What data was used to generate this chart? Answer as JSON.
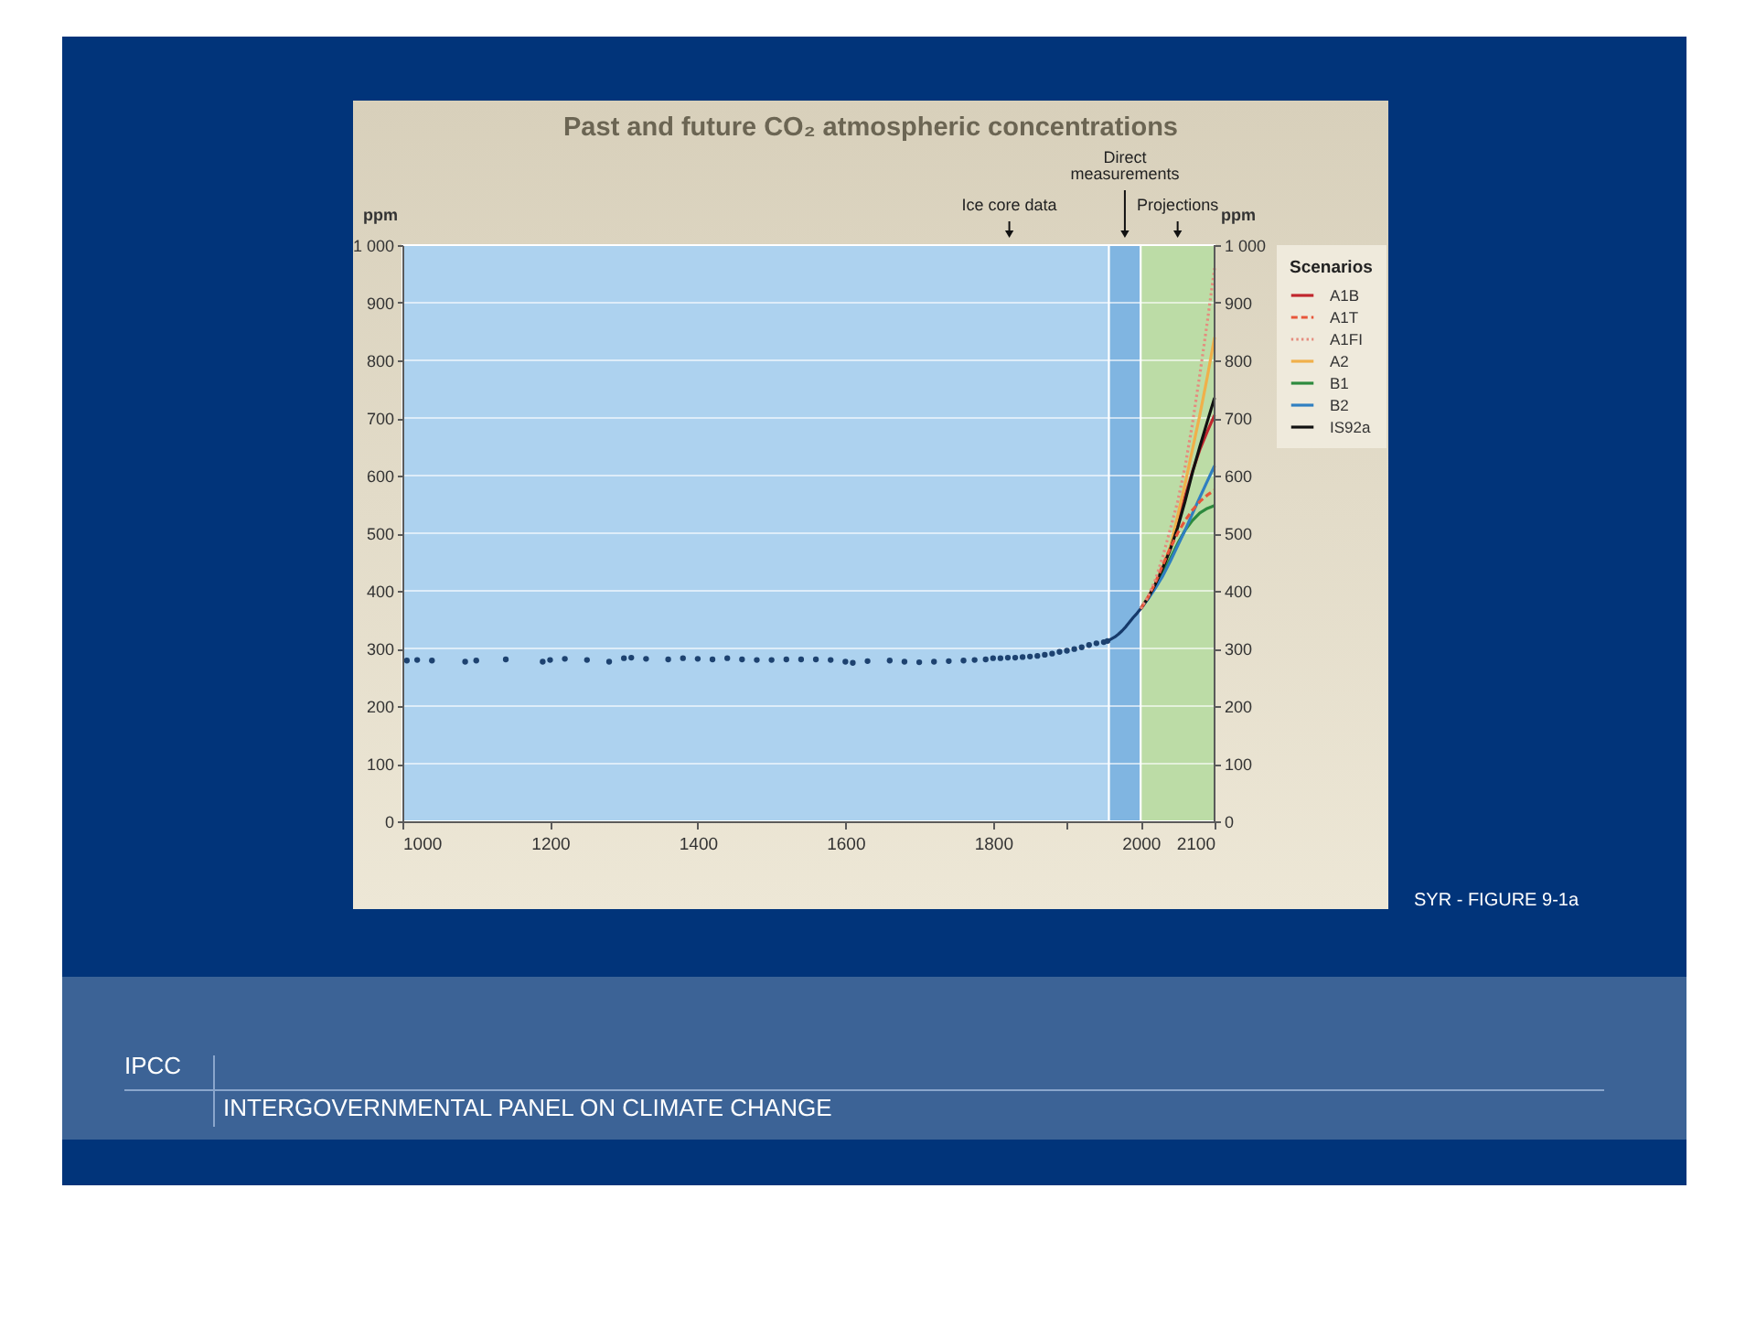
{
  "chart_data": {
    "type": "line",
    "title": "Past and future CO₂ atmospheric concentrations",
    "ylabel": "ppm",
    "y2label": "ppm",
    "legend_title": "Scenarios",
    "legend": "right",
    "grid": "y",
    "xlim": [
      1000,
      2100
    ],
    "xticks": [
      1000,
      1200,
      1400,
      1600,
      1800,
      {
        "value": 1900,
        "label": null
      },
      2000,
      2100
    ],
    "ylim": [
      0,
      1000
    ],
    "yticks": [
      0,
      100,
      200,
      300,
      400,
      500,
      600,
      700,
      800,
      900,
      {
        "value": 1000,
        "label": "1 000"
      }
    ],
    "y2lim": [
      0,
      1000
    ],
    "y2ticks": [
      0,
      100,
      200,
      300,
      400,
      500,
      600,
      700,
      800,
      900,
      {
        "value": 1000,
        "label": "1 000"
      }
    ],
    "bands": [
      {
        "axis": "x",
        "from": 1000,
        "to": 1957,
        "label": "Ice core data",
        "color": "#add2ef"
      },
      {
        "axis": "x",
        "from": 1957,
        "to": 2000,
        "label": "Direct measurements",
        "color": "#80b5e1"
      },
      {
        "axis": "x",
        "from": 2000,
        "to": 2100,
        "label": "Projections",
        "color": "#bcdca6"
      }
    ],
    "annotations": [
      "SYR - FIGURE 9-1a",
      "IPCC",
      "INTERGOVERNMENTAL PANEL ON CLIMATE CHANGE"
    ],
    "series": [
      {
        "type": "scatter",
        "marker": "circle",
        "color": "#1d4270",
        "x": [
          1006,
          1020,
          1040,
          1085,
          1100,
          1140,
          1190,
          1200,
          1220,
          1250,
          1280,
          1300,
          1310,
          1330,
          1360,
          1380,
          1400,
          1420,
          1440,
          1460,
          1480,
          1500,
          1520,
          1540,
          1560,
          1580,
          1600,
          1610,
          1630,
          1660,
          1680,
          1700,
          1720,
          1740,
          1760,
          1775,
          1790,
          1800,
          1810,
          1820,
          1830,
          1840,
          1850,
          1860,
          1870,
          1880,
          1890,
          1900,
          1910,
          1920,
          1930,
          1940,
          1950,
          1955
        ],
        "values": [
          279,
          280,
          279,
          277,
          279,
          281,
          277,
          280,
          282,
          280,
          277,
          283,
          284,
          282,
          281,
          283,
          282,
          281,
          283,
          281,
          280,
          280,
          281,
          281,
          281,
          280,
          277,
          275,
          278,
          279,
          277,
          276,
          277,
          278,
          279,
          280,
          281,
          283,
          283,
          284,
          284,
          285,
          286,
          287,
          289,
          291,
          294,
          296,
          299,
          302,
          306,
          309,
          311,
          313
        ]
      },
      {
        "type": "line",
        "color": "#163a6b",
        "x": [
          1958,
          1965,
          1970,
          1975,
          1980,
          1985,
          1990,
          1995,
          2000
        ],
        "values": [
          315,
          320,
          325,
          331,
          338,
          346,
          354,
          361,
          369
        ]
      },
      {
        "name": "A1B",
        "color": "#c0262d",
        "line_style": "solid",
        "x": [
          2000,
          2010,
          2020,
          2030,
          2040,
          2050,
          2060,
          2070,
          2080,
          2090,
          2100
        ],
        "values": [
          369,
          389,
          412,
          440,
          474,
          518,
          563,
          607,
          645,
          676,
          705
        ]
      },
      {
        "name": "A1T",
        "color": "#e8563a",
        "line_style": "dashed",
        "x": [
          2000,
          2010,
          2020,
          2030,
          2040,
          2050,
          2060,
          2070,
          2080,
          2090,
          2100
        ],
        "values": [
          369,
          389,
          415,
          445,
          474,
          500,
          522,
          540,
          555,
          566,
          575
        ]
      },
      {
        "name": "A1FI",
        "color": "#e58c7e",
        "line_style": "dotted",
        "x": [
          2000,
          2010,
          2020,
          2030,
          2040,
          2050,
          2060,
          2070,
          2080,
          2090,
          2100
        ],
        "values": [
          369,
          390,
          420,
          460,
          507,
          555,
          615,
          690,
          775,
          865,
          960
        ]
      },
      {
        "name": "A2",
        "color": "#f0b04a",
        "line_style": "solid",
        "x": [
          2000,
          2010,
          2020,
          2030,
          2040,
          2050,
          2060,
          2070,
          2080,
          2090,
          2100
        ],
        "values": [
          369,
          388,
          412,
          442,
          476,
          530,
          585,
          645,
          705,
          770,
          840
        ]
      },
      {
        "name": "B1",
        "color": "#2d8a3e",
        "line_style": "solid",
        "x": [
          2000,
          2010,
          2020,
          2030,
          2040,
          2050,
          2060,
          2070,
          2080,
          2090,
          2100
        ],
        "values": [
          369,
          387,
          409,
          432,
          456,
          482,
          505,
          522,
          535,
          543,
          548
        ]
      },
      {
        "name": "B2",
        "color": "#2f7fc1",
        "line_style": "solid",
        "x": [
          2000,
          2010,
          2020,
          2030,
          2040,
          2050,
          2060,
          2070,
          2080,
          2090,
          2100
        ],
        "values": [
          369,
          386,
          405,
          426,
          451,
          478,
          505,
          534,
          562,
          590,
          617
        ]
      },
      {
        "name": "IS92a",
        "color": "#111111",
        "line_style": "solid",
        "x": [
          2000,
          2010,
          2020,
          2030,
          2040,
          2050,
          2060,
          2070,
          2080,
          2090,
          2100
        ],
        "values": [
          369,
          388,
          412,
          440,
          472,
          510,
          555,
          605,
          650,
          693,
          735
        ]
      }
    ]
  }
}
